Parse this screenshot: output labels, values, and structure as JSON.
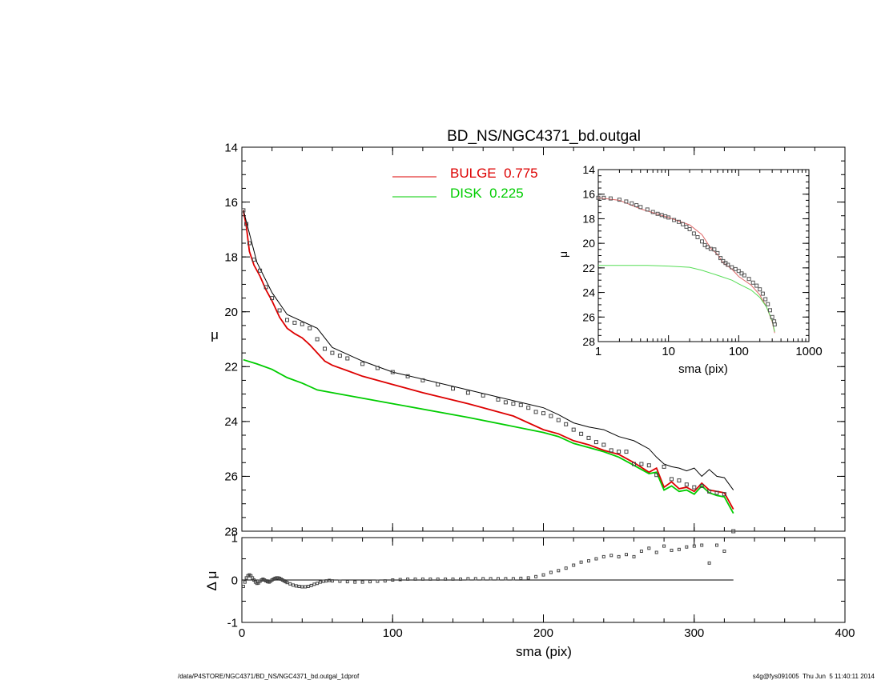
{
  "chart_data": [
    {
      "id": "main",
      "type": "line",
      "title": "BD_NS/NGC4371_bd.outgal",
      "xlabel": "sma (pix)",
      "ylabel": "μ",
      "xlim": [
        0,
        400
      ],
      "ylim": [
        28,
        14
      ],
      "y_inverted": true,
      "x_ticks": [
        0,
        100,
        200,
        300,
        400
      ],
      "y_ticks": [
        14,
        16,
        18,
        20,
        22,
        24,
        26,
        28
      ],
      "legend": {
        "placement": "top-center",
        "entries": [
          {
            "label": "BULGE  0.775",
            "color": "#dd0000"
          },
          {
            "label": "DISK  0.225",
            "color": "#00cc00"
          }
        ]
      },
      "series": [
        {
          "name": "BULGE",
          "style": "line",
          "color": "#dd0000",
          "x": [
            1,
            3,
            5,
            8,
            12,
            16,
            20,
            25,
            30,
            35,
            40,
            45,
            50,
            55,
            60,
            70,
            80,
            100,
            120,
            150,
            180,
            200,
            210,
            220,
            230,
            240,
            250,
            260,
            270,
            275,
            280,
            285,
            290,
            295,
            300,
            305,
            310,
            315,
            320,
            326
          ],
          "y": [
            16.3,
            16.9,
            17.8,
            18.3,
            18.7,
            19.2,
            19.6,
            20.2,
            20.6,
            20.8,
            20.95,
            21.2,
            21.5,
            21.8,
            21.95,
            22.15,
            22.35,
            22.65,
            22.95,
            23.35,
            23.8,
            24.3,
            24.45,
            24.7,
            24.85,
            25.05,
            25.2,
            25.5,
            25.85,
            25.7,
            26.4,
            26.2,
            26.45,
            26.4,
            26.55,
            26.25,
            26.5,
            26.55,
            26.6,
            27.2
          ]
        },
        {
          "name": "DISK",
          "style": "line",
          "color": "#00cc00",
          "x": [
            1,
            10,
            20,
            30,
            40,
            50,
            60,
            80,
            100,
            150,
            200,
            210,
            220,
            230,
            240,
            250,
            260,
            270,
            275,
            280,
            285,
            290,
            295,
            300,
            305,
            310,
            315,
            320,
            326
          ],
          "y": [
            21.75,
            21.9,
            22.1,
            22.4,
            22.6,
            22.85,
            22.95,
            23.15,
            23.35,
            23.85,
            24.4,
            24.55,
            24.8,
            24.95,
            25.1,
            25.3,
            25.6,
            25.9,
            25.85,
            26.5,
            26.35,
            26.55,
            26.5,
            26.65,
            26.35,
            26.6,
            26.7,
            26.75,
            27.35
          ]
        },
        {
          "name": "total",
          "style": "line",
          "color": "#000000",
          "x": [
            1,
            10,
            20,
            30,
            40,
            50,
            60,
            80,
            100,
            150,
            200,
            210,
            220,
            230,
            240,
            250,
            260,
            270,
            275,
            280,
            285,
            290,
            295,
            300,
            305,
            310,
            315,
            320,
            326
          ],
          "y": [
            16.3,
            18.2,
            19.3,
            20.1,
            20.35,
            20.6,
            21.3,
            21.8,
            22.2,
            22.85,
            23.5,
            23.75,
            24.05,
            24.2,
            24.3,
            24.55,
            24.7,
            25.0,
            25.3,
            25.55,
            25.65,
            25.7,
            25.8,
            25.7,
            26.0,
            25.75,
            26.0,
            26.05,
            26.5
          ]
        },
        {
          "name": "data",
          "style": "markers",
          "color": "#444444",
          "x": [
            1,
            3,
            5,
            8,
            12,
            16,
            20,
            25,
            30,
            35,
            40,
            45,
            50,
            55,
            60,
            65,
            70,
            80,
            90,
            100,
            110,
            120,
            130,
            140,
            150,
            160,
            170,
            175,
            180,
            185,
            190,
            195,
            200,
            205,
            210,
            215,
            220,
            225,
            230,
            235,
            240,
            245,
            250,
            255,
            260,
            265,
            270,
            275,
            280,
            285,
            290,
            295,
            300,
            305,
            310,
            315,
            320,
            326
          ],
          "y": [
            16.3,
            16.8,
            17.5,
            18.1,
            18.5,
            19.1,
            19.5,
            19.95,
            20.3,
            20.4,
            20.45,
            20.6,
            21.0,
            21.35,
            21.5,
            21.6,
            21.7,
            21.9,
            22.05,
            22.2,
            22.35,
            22.5,
            22.65,
            22.8,
            22.95,
            23.05,
            23.2,
            23.3,
            23.35,
            23.4,
            23.5,
            23.65,
            23.7,
            23.8,
            23.95,
            24.1,
            24.3,
            24.45,
            24.6,
            24.75,
            24.85,
            25.05,
            25.1,
            25.1,
            25.55,
            25.55,
            25.6,
            25.95,
            25.65,
            26.1,
            26.15,
            26.3,
            26.4,
            26.35,
            26.55,
            26.6,
            26.65,
            28.0
          ]
        }
      ]
    },
    {
      "id": "residual",
      "type": "scatter",
      "xlabel": "sma (pix)",
      "ylabel": "Δ μ",
      "xlim": [
        0,
        400
      ],
      "ylim": [
        -1,
        1
      ],
      "x_ticks": [
        0,
        100,
        200,
        300,
        400
      ],
      "y_ticks": [
        -1,
        0,
        1
      ],
      "zero_line_xmax": 326,
      "series": [
        {
          "name": "residual",
          "style": "markers",
          "color": "#444444",
          "x": [
            1,
            2,
            3,
            4,
            5,
            6,
            7,
            8,
            9,
            10,
            11,
            12,
            13,
            14,
            15,
            16,
            17,
            18,
            19,
            20,
            21,
            22,
            23,
            24,
            25,
            26,
            27,
            28,
            29,
            30,
            32,
            34,
            36,
            38,
            40,
            42,
            44,
            46,
            48,
            50,
            52,
            54,
            56,
            58,
            60,
            65,
            70,
            75,
            80,
            85,
            90,
            95,
            100,
            105,
            110,
            115,
            120,
            125,
            130,
            135,
            140,
            145,
            150,
            155,
            160,
            165,
            170,
            175,
            180,
            185,
            190,
            195,
            200,
            205,
            210,
            215,
            220,
            225,
            230,
            235,
            240,
            245,
            250,
            255,
            260,
            265,
            270,
            275,
            280,
            285,
            290,
            295,
            300,
            305,
            310,
            315,
            320
          ],
          "y": [
            -0.15,
            -0.05,
            0.05,
            0.1,
            0.12,
            0.1,
            0.05,
            0.0,
            -0.05,
            -0.08,
            -0.07,
            -0.03,
            0.0,
            0.02,
            0.0,
            -0.02,
            -0.04,
            -0.05,
            -0.03,
            0.0,
            0.02,
            0.04,
            0.05,
            0.05,
            0.04,
            0.02,
            0.0,
            -0.02,
            -0.04,
            -0.06,
            -0.09,
            -0.12,
            -0.14,
            -0.15,
            -0.16,
            -0.16,
            -0.15,
            -0.13,
            -0.1,
            -0.08,
            -0.05,
            -0.03,
            -0.02,
            -0.01,
            -0.02,
            -0.03,
            -0.04,
            -0.05,
            -0.05,
            -0.04,
            -0.03,
            -0.02,
            0.0,
            0.01,
            0.02,
            0.02,
            0.02,
            0.02,
            0.02,
            0.02,
            0.02,
            0.02,
            0.03,
            0.03,
            0.03,
            0.03,
            0.03,
            0.03,
            0.03,
            0.04,
            0.05,
            0.08,
            0.12,
            0.18,
            0.22,
            0.28,
            0.35,
            0.42,
            0.45,
            0.5,
            0.55,
            0.58,
            0.55,
            0.6,
            0.55,
            0.68,
            0.75,
            0.65,
            0.8,
            0.7,
            0.72,
            0.78,
            0.8,
            0.82,
            0.4,
            0.82,
            0.68
          ]
        }
      ]
    },
    {
      "id": "inset",
      "type": "line",
      "xlabel": "sma (pix)",
      "ylabel": "μ",
      "x_scale": "log",
      "xlim": [
        1,
        1000
      ],
      "ylim": [
        28,
        14
      ],
      "y_inverted": true,
      "x_ticks": [
        1,
        10,
        100,
        1000
      ],
      "y_ticks": [
        14,
        16,
        18,
        20,
        22,
        24,
        26,
        28
      ],
      "series": [
        {
          "name": "BULGE",
          "style": "line",
          "color": "#dd6666",
          "x": [
            1,
            2,
            4,
            10,
            20,
            30,
            40,
            50,
            60,
            80,
            100,
            150,
            200,
            250,
            300,
            326
          ],
          "y": [
            16.3,
            16.5,
            17.2,
            17.9,
            18.5,
            19.3,
            20.4,
            20.9,
            21.6,
            22.1,
            22.7,
            23.4,
            24.2,
            25.2,
            26.4,
            27.3
          ]
        },
        {
          "name": "DISK",
          "style": "line",
          "color": "#55dd55",
          "x": [
            1,
            5,
            10,
            20,
            30,
            50,
            80,
            100,
            150,
            200,
            250,
            300,
            326
          ],
          "y": [
            21.8,
            21.8,
            21.85,
            21.95,
            22.2,
            22.6,
            23.0,
            23.3,
            23.8,
            24.4,
            25.2,
            26.3,
            27.2
          ]
        },
        {
          "name": "data",
          "style": "markers",
          "color": "#555555",
          "x": [
            1,
            1.2,
            1.5,
            2,
            2.5,
            3,
            3.5,
            4,
            5,
            6,
            7,
            8,
            9,
            10,
            12,
            14,
            16,
            18,
            20,
            23,
            26,
            30,
            33,
            36,
            40,
            45,
            50,
            55,
            60,
            65,
            70,
            80,
            90,
            100,
            110,
            120,
            140,
            160,
            180,
            200,
            220,
            240,
            260,
            280,
            300,
            320,
            326
          ],
          "y": [
            16.3,
            16.3,
            16.35,
            16.45,
            16.6,
            16.75,
            16.9,
            17.05,
            17.25,
            17.45,
            17.6,
            17.7,
            17.8,
            17.9,
            18.1,
            18.25,
            18.45,
            18.65,
            18.85,
            19.2,
            19.5,
            19.85,
            20.15,
            20.3,
            20.45,
            20.5,
            20.8,
            21.2,
            21.45,
            21.6,
            21.75,
            21.95,
            22.1,
            22.25,
            22.45,
            22.6,
            22.9,
            23.2,
            23.45,
            23.75,
            24.1,
            24.55,
            24.95,
            25.45,
            26.0,
            26.35,
            26.6
          ]
        }
      ]
    }
  ],
  "footer": {
    "left": "/data/P4STORE/NGC4371/BD_NS/NGC4371_bd.outgal_1dprof",
    "right": "s4g@fys091005  Thu Jun  5 11:40:11 2014"
  }
}
